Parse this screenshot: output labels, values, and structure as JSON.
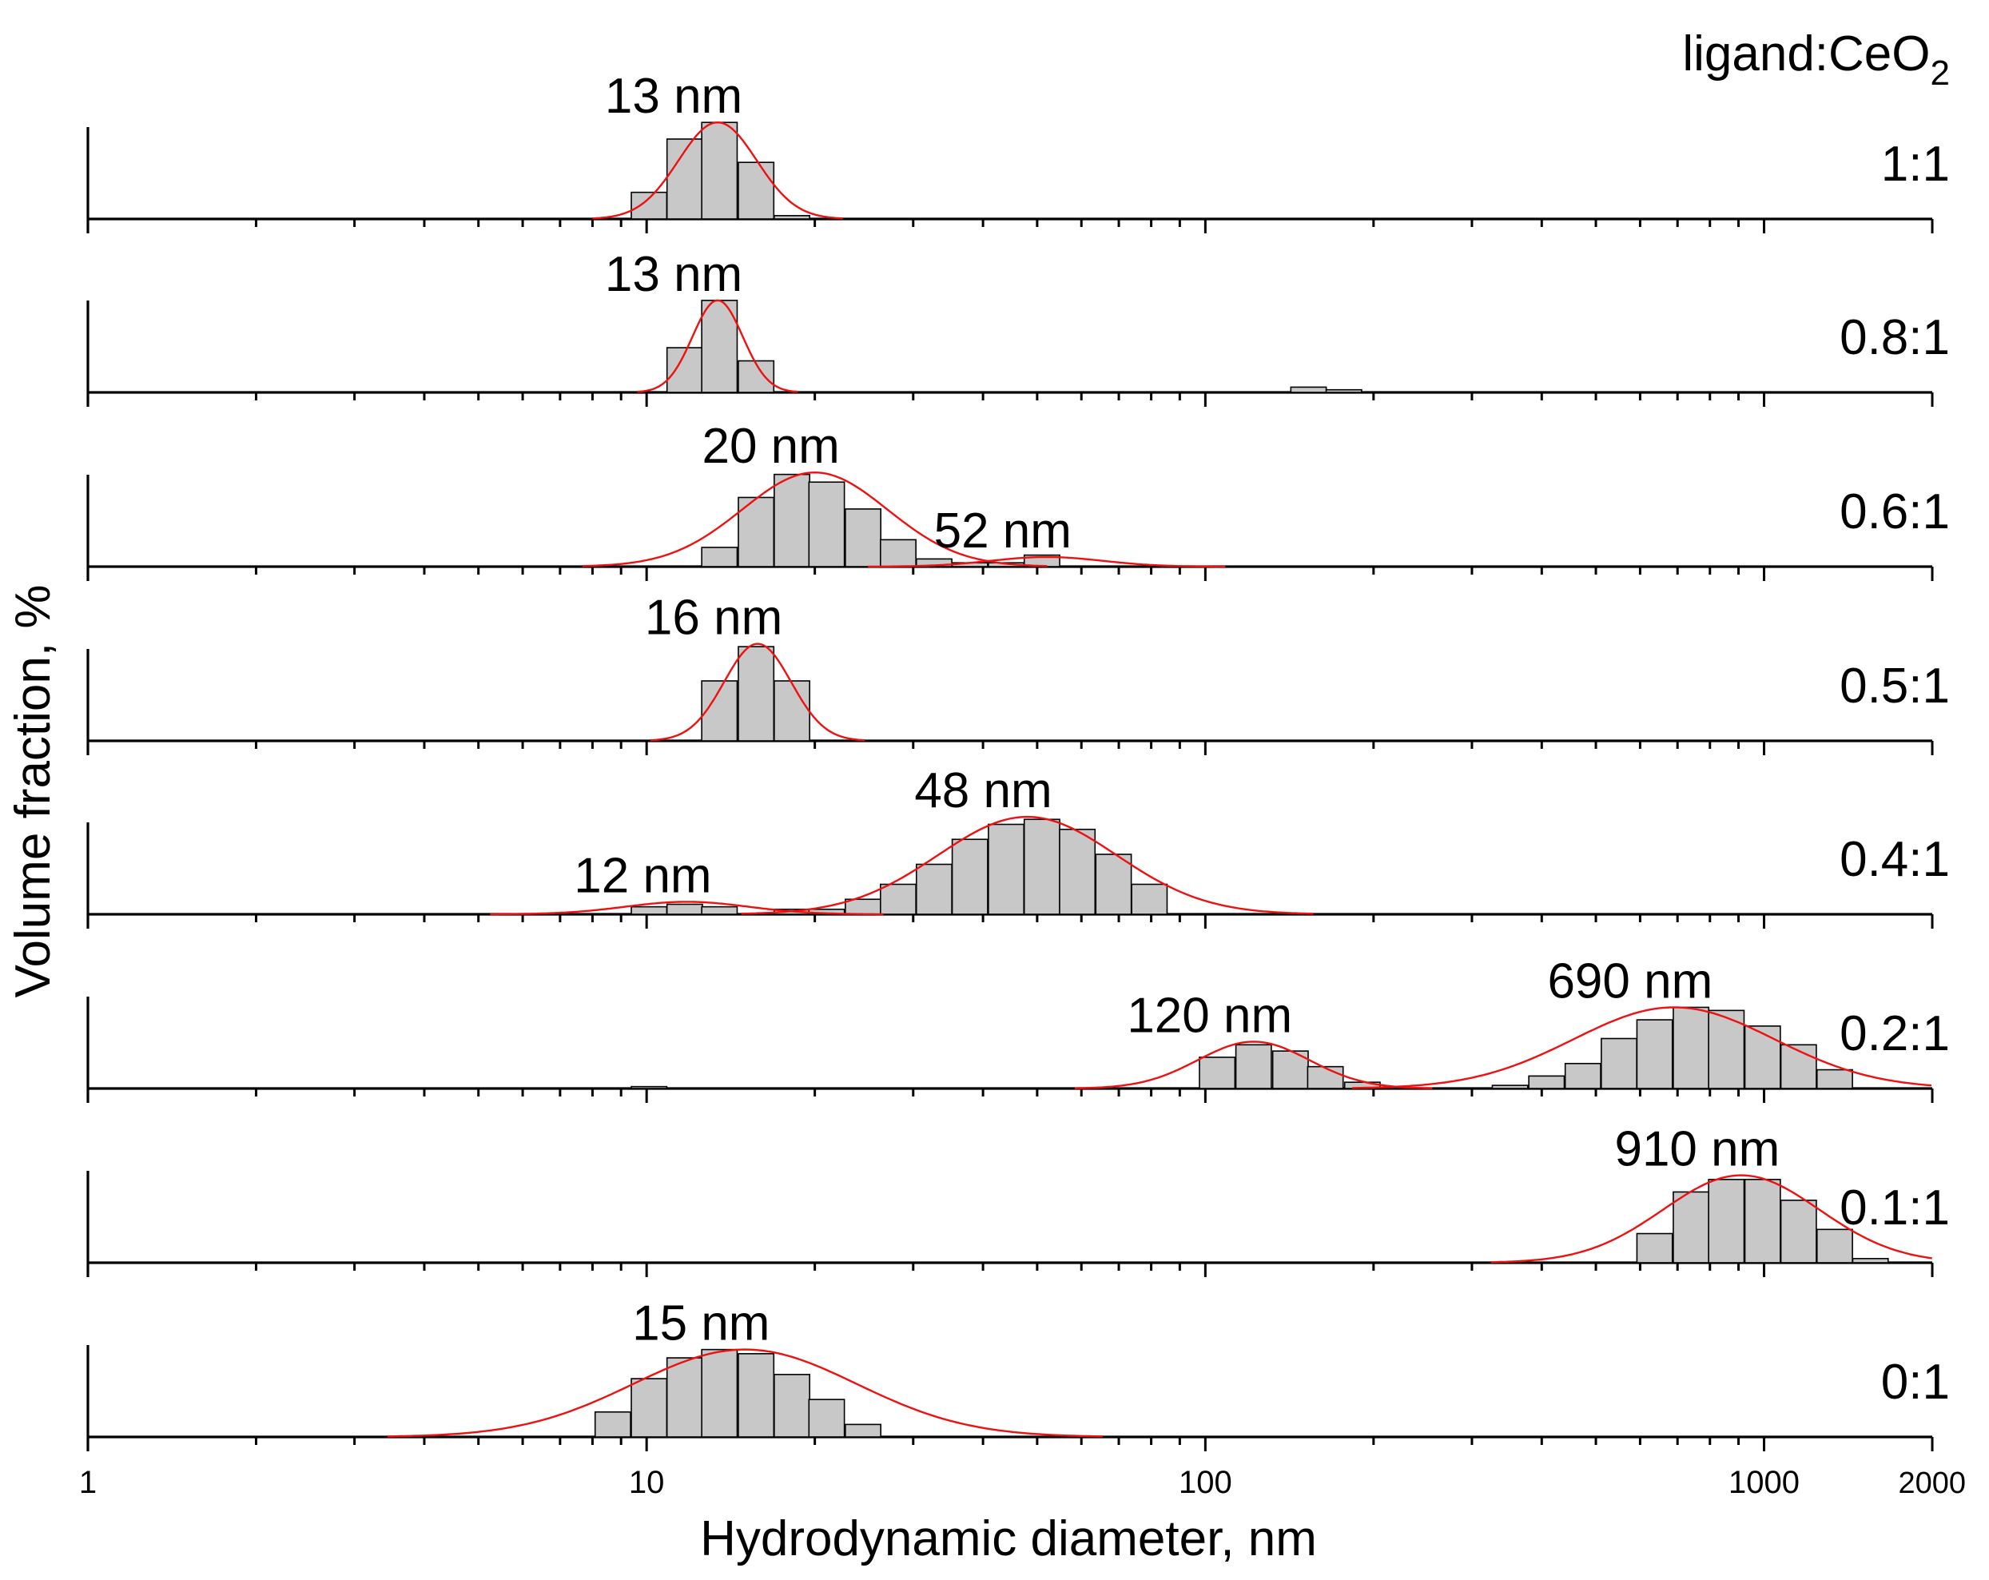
{
  "chart_data": {
    "type": "bar",
    "xlabel": "Hydrodynamic diameter, nm",
    "ylabel": "Volume fraction, %",
    "legend_title": "ligand:CeO",
    "legend_title_sub": "2",
    "xscale": "log",
    "xlim": [
      1,
      2000
    ],
    "xticks": [
      1,
      10,
      100,
      1000,
      2000
    ],
    "xtick_labels": [
      "1",
      "10",
      "100",
      "1000",
      "2000"
    ],
    "panels": [
      {
        "ratio": "1:1",
        "ymax": 30,
        "bars": [
          [
            10.1,
            8
          ],
          [
            11.7,
            24
          ],
          [
            13.5,
            29
          ],
          [
            15.7,
            17
          ],
          [
            18.2,
            1
          ]
        ],
        "peaks": [
          {
            "label": "13 nm",
            "x": 13.4,
            "y": 29,
            "sigma": 0.07
          }
        ]
      },
      {
        "ratio": "0.8:1",
        "ymax": 38,
        "bars": [
          [
            11.7,
            17
          ],
          [
            13.5,
            35
          ],
          [
            15.7,
            12
          ],
          [
            153,
            2
          ],
          [
            177,
            1
          ]
        ],
        "peaks": [
          {
            "label": "13 nm",
            "x": 13.4,
            "y": 35,
            "sigma": 0.045
          }
        ]
      },
      {
        "ratio": "0.6:1",
        "ymax": 26,
        "bars": [
          [
            13.5,
            5
          ],
          [
            15.7,
            18
          ],
          [
            18.2,
            24
          ],
          [
            21,
            22
          ],
          [
            24.4,
            15
          ],
          [
            28.2,
            7
          ],
          [
            32.7,
            2
          ],
          [
            37.9,
            1
          ],
          [
            44,
            1
          ],
          [
            51,
            3
          ]
        ],
        "peaks": [
          {
            "label": "20 nm",
            "x": 20,
            "y": 24.5,
            "sigma": 0.13
          },
          {
            "label": "52 nm",
            "x": 52,
            "y": 2.5,
            "sigma": 0.1
          }
        ]
      },
      {
        "ratio": "0.5:1",
        "ymax": 35,
        "bars": [
          [
            13.5,
            21
          ],
          [
            15.7,
            33
          ],
          [
            18.2,
            21
          ]
        ],
        "peaks": [
          {
            "label": "16 nm",
            "x": 15.8,
            "y": 34,
            "sigma": 0.06
          }
        ]
      },
      {
        "ratio": "0.4:1",
        "ymax": 20,
        "bars": [
          [
            10.1,
            1.5
          ],
          [
            11.7,
            2
          ],
          [
            13.5,
            1.5
          ],
          [
            18.2,
            1
          ],
          [
            21,
            1
          ],
          [
            24.4,
            3
          ],
          [
            28.2,
            6
          ],
          [
            32.7,
            10
          ],
          [
            37.9,
            15
          ],
          [
            44,
            18
          ],
          [
            51,
            19
          ],
          [
            59,
            17
          ],
          [
            68.5,
            12
          ],
          [
            79.4,
            6
          ]
        ],
        "peaks": [
          {
            "label": "12 nm",
            "x": 11.8,
            "y": 2.5,
            "sigma": 0.11
          },
          {
            "label": "48 nm",
            "x": 48,
            "y": 19.5,
            "sigma": 0.16
          }
        ]
      },
      {
        "ratio": "0.2:1",
        "ymax": 16,
        "bars": [
          [
            10.1,
            0.3
          ],
          [
            105,
            5
          ],
          [
            122,
            7
          ],
          [
            142,
            6
          ],
          [
            164,
            3.5
          ],
          [
            191,
            1
          ],
          [
            351,
            0.5
          ],
          [
            408,
            2
          ],
          [
            474,
            4
          ],
          [
            550,
            8
          ],
          [
            637,
            11
          ],
          [
            740,
            13
          ],
          [
            856,
            12.5
          ],
          [
            994,
            10
          ],
          [
            1153,
            7
          ],
          [
            1338,
            3
          ]
        ],
        "peaks": [
          {
            "label": "120 nm",
            "x": 122,
            "y": 7.5,
            "sigma": 0.1
          },
          {
            "label": "690 nm",
            "x": 690,
            "y": 13,
            "sigma": 0.18
          }
        ]
      },
      {
        "ratio": "0.1:1",
        "ymax": 24,
        "bars": [
          [
            637,
            7
          ],
          [
            740,
            17
          ],
          [
            856,
            20
          ],
          [
            994,
            20
          ],
          [
            1153,
            15
          ],
          [
            1338,
            8
          ],
          [
            1550,
            1
          ]
        ],
        "peaks": [
          {
            "label": "910 nm",
            "x": 910,
            "y": 21,
            "sigma": 0.14
          }
        ]
      },
      {
        "ratio": "0:1",
        "ymax": 24,
        "bars": [
          [
            8.7,
            6
          ],
          [
            10.1,
            14
          ],
          [
            11.7,
            19
          ],
          [
            13.5,
            21
          ],
          [
            15.7,
            20
          ],
          [
            18.2,
            15
          ],
          [
            21,
            9
          ],
          [
            24.4,
            3
          ]
        ],
        "peaks": [
          {
            "label": "15 nm",
            "x": 15,
            "y": 21,
            "sigma": 0.2
          }
        ]
      }
    ]
  }
}
